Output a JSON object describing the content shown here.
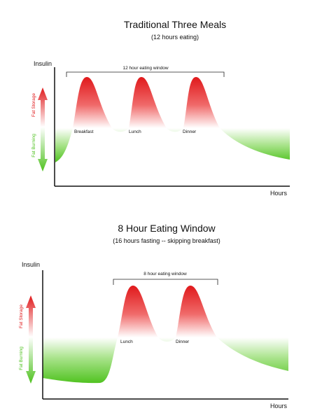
{
  "colors": {
    "storage": "#e0191b",
    "burning": "#5ac72a",
    "axis": "#111111"
  },
  "diagrams": [
    {
      "title": "Traditional Three Meals",
      "subtitle": "(12 hours eating)",
      "y_axis_label": "Insulin",
      "x_axis_label": "Hours",
      "storage_label": "Fat Storage",
      "burning_label": "Fat Burning",
      "window_label": "12 hour eating window",
      "meals": [
        "Breakfast",
        "Lunch",
        "Dinner"
      ]
    },
    {
      "title": "8 Hour Eating Window",
      "subtitle": "(16 hours fasting -- skipping breakfast)",
      "y_axis_label": "Insulin",
      "x_axis_label": "Hours",
      "storage_label": "Fat Storage",
      "burning_label": "Fat Burning",
      "window_label": "8 hour eating window",
      "meals": [
        "Lunch",
        "Dinner"
      ]
    }
  ]
}
